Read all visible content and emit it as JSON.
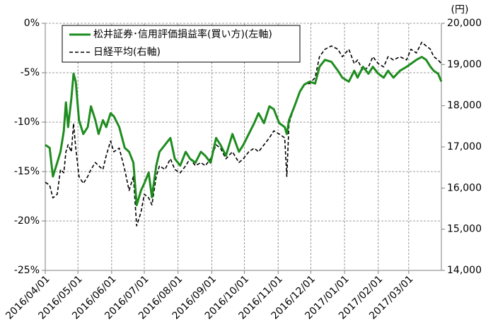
{
  "chart_data": {
    "type": "line",
    "unit_label": "(円)",
    "x": [
      "2016/04/01",
      "2016/04/05",
      "2016/04/08",
      "2016/04/12",
      "2016/04/15",
      "2016/04/18",
      "2016/04/20",
      "2016/04/22",
      "2016/04/25",
      "2016/04/27",
      "2016/04/29",
      "2016/05/02",
      "2016/05/06",
      "2016/05/10",
      "2016/05/13",
      "2016/05/17",
      "2016/05/20",
      "2016/05/24",
      "2016/05/27",
      "2016/05/31",
      "2016/06/03",
      "2016/06/08",
      "2016/06/13",
      "2016/06/17",
      "2016/06/21",
      "2016/06/24",
      "2016/06/28",
      "2016/07/01",
      "2016/07/05",
      "2016/07/08",
      "2016/07/12",
      "2016/07/15",
      "2016/07/20",
      "2016/07/25",
      "2016/07/29",
      "2016/08/03",
      "2016/08/08",
      "2016/08/12",
      "2016/08/17",
      "2016/08/22",
      "2016/08/26",
      "2016/08/31",
      "2016/09/05",
      "2016/09/09",
      "2016/09/14",
      "2016/09/20",
      "2016/09/26",
      "2016/09/30",
      "2016/10/05",
      "2016/10/10",
      "2016/10/14",
      "2016/10/19",
      "2016/10/24",
      "2016/10/28",
      "2016/11/02",
      "2016/11/07",
      "2016/11/09",
      "2016/11/11",
      "2016/11/16",
      "2016/11/21",
      "2016/11/25",
      "2016/11/30",
      "2016/12/05",
      "2016/12/09",
      "2016/12/14",
      "2016/12/20",
      "2016/12/26",
      "2016/12/30",
      "2017/01/05",
      "2017/01/10",
      "2017/01/13",
      "2017/01/18",
      "2017/01/23",
      "2017/01/27",
      "2017/02/01",
      "2017/02/06",
      "2017/02/10",
      "2017/02/15",
      "2017/02/21",
      "2017/02/27",
      "2017/03/03",
      "2017/03/08",
      "2017/03/13",
      "2017/03/17",
      "2017/03/21",
      "2017/03/24",
      "2017/03/28",
      "2017/03/31"
    ],
    "xlim": [
      "2016/04/01",
      "2017/03/31"
    ],
    "xticks": [
      "2016/04/01",
      "2016/05/01",
      "2016/06/01",
      "2016/07/01",
      "2016/08/01",
      "2016/09/01",
      "2016/10/01",
      "2016/11/01",
      "2016/12/01",
      "2017/01/01",
      "2017/02/01",
      "2017/03/01"
    ],
    "ylim": [
      -25,
      0
    ],
    "yticks": [
      {
        "value": 0,
        "label": "0%"
      },
      {
        "value": -5,
        "label": "-5%"
      },
      {
        "value": -10,
        "label": "-10%"
      },
      {
        "value": -15,
        "label": "-15%"
      },
      {
        "value": -20,
        "label": "-20%"
      },
      {
        "value": -25,
        "label": "-25%"
      }
    ],
    "y2lim": [
      14000,
      20000
    ],
    "y2ticks": [
      {
        "value": 20000,
        "label": "20,000"
      },
      {
        "value": 19000,
        "label": "19,000"
      },
      {
        "value": 18000,
        "label": "18,000"
      },
      {
        "value": 17000,
        "label": "17,000"
      },
      {
        "value": 16000,
        "label": "16,000"
      },
      {
        "value": 15000,
        "label": "15,000"
      },
      {
        "value": 14000,
        "label": "14,000"
      }
    ],
    "grid": true,
    "legend": "top-left",
    "series": [
      {
        "name": "松井証券･信用評価損益率(買い方)(左軸)",
        "color": "#1e8c1e",
        "line_style": "solid",
        "axis": "y",
        "values": [
          -12.3,
          -12.6,
          -15.5,
          -14.1,
          -13,
          -10.9,
          -8,
          -10.5,
          -7.6,
          -5.1,
          -5.9,
          -9.8,
          -11.2,
          -10.5,
          -8.4,
          -9.8,
          -11.2,
          -9.8,
          -10.5,
          -9.1,
          -9.4,
          -10.5,
          -12.6,
          -13,
          -14.1,
          -18.4,
          -16.9,
          -16.2,
          -15.1,
          -17.6,
          -14.4,
          -13,
          -12.3,
          -11.6,
          -13.7,
          -14.4,
          -13,
          -13.7,
          -14.1,
          -13,
          -13.4,
          -14.1,
          -11.6,
          -12.3,
          -13.4,
          -11.2,
          -13,
          -12.3,
          -11.2,
          -10.1,
          -9.1,
          -10.1,
          -8.4,
          -8.7,
          -10.1,
          -10.5,
          -11.2,
          -9.8,
          -8.4,
          -6.9,
          -6.2,
          -5.9,
          -6.1,
          -4.4,
          -3.7,
          -3.9,
          -4.8,
          -5.5,
          -5.9,
          -4.8,
          -5.5,
          -4.4,
          -5.1,
          -4.4,
          -5.1,
          -5.5,
          -4.8,
          -5.5,
          -4.8,
          -4.4,
          -4.1,
          -3.7,
          -3.4,
          -3.7,
          -4.4,
          -4.8,
          -5.1,
          -5.9
        ]
      },
      {
        "name": "日経平均(右軸)",
        "color": "#000000",
        "line_style": "dashed",
        "axis": "y2",
        "values": [
          16140,
          16070,
          15760,
          15850,
          16450,
          16370,
          16880,
          17050,
          16880,
          17570,
          16970,
          16280,
          16110,
          16280,
          16450,
          16620,
          16540,
          16450,
          16790,
          17140,
          16880,
          16970,
          16450,
          15940,
          16280,
          15080,
          15420,
          15850,
          15760,
          15590,
          16280,
          16540,
          16450,
          16710,
          16450,
          16370,
          16540,
          16710,
          16540,
          16620,
          16540,
          16710,
          17050,
          16970,
          16710,
          16880,
          16620,
          16710,
          16880,
          16970,
          16880,
          17050,
          17220,
          17390,
          17310,
          17220,
          16280,
          17570,
          17990,
          18340,
          18510,
          18540,
          18680,
          19190,
          19370,
          19450,
          19370,
          19190,
          19370,
          19020,
          19110,
          18850,
          18940,
          19190,
          19020,
          18940,
          19190,
          19110,
          19190,
          19110,
          19370,
          19280,
          19540,
          19450,
          19370,
          19190,
          19110,
          19020
        ]
      }
    ]
  }
}
